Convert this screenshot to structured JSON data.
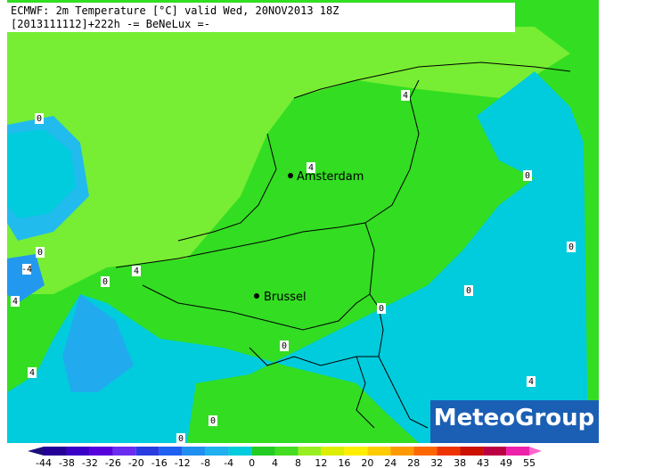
{
  "header": {
    "title": "ECMWF: 2m Temperature [°C] valid Wed, 20NOV2013 18Z",
    "subtitle": "[2013111112]+222h -= BeNeLux =-"
  },
  "cities": [
    "Amsterdam",
    "Brussel"
  ],
  "contour_labels": [
    "0",
    "4",
    "0",
    "-4",
    "4",
    "4",
    "0",
    "4",
    "0",
    "0",
    "0",
    "4",
    "0",
    "0",
    "4",
    "0",
    "0"
  ],
  "logo": "MeteoGroup",
  "colorbar": {
    "ticks": [
      -44,
      -38,
      -32,
      -26,
      -20,
      -16,
      -12,
      -8,
      -4,
      0,
      4,
      8,
      12,
      16,
      20,
      24,
      28,
      32,
      38,
      43,
      49,
      55
    ],
    "colors": [
      "#1a0f7a",
      "#240096",
      "#3a00c8",
      "#5500dd",
      "#6a2cf0",
      "#2a3ce0",
      "#2060f0",
      "#2090f0",
      "#20b0f0",
      "#00ccdd",
      "#22cc22",
      "#44dd22",
      "#99ee22",
      "#ddee00",
      "#ffee00",
      "#ffcc00",
      "#ff9900",
      "#ff6600",
      "#ee3300",
      "#cc1100",
      "#bb0044",
      "#ee22aa",
      "#ff66cc"
    ]
  }
}
